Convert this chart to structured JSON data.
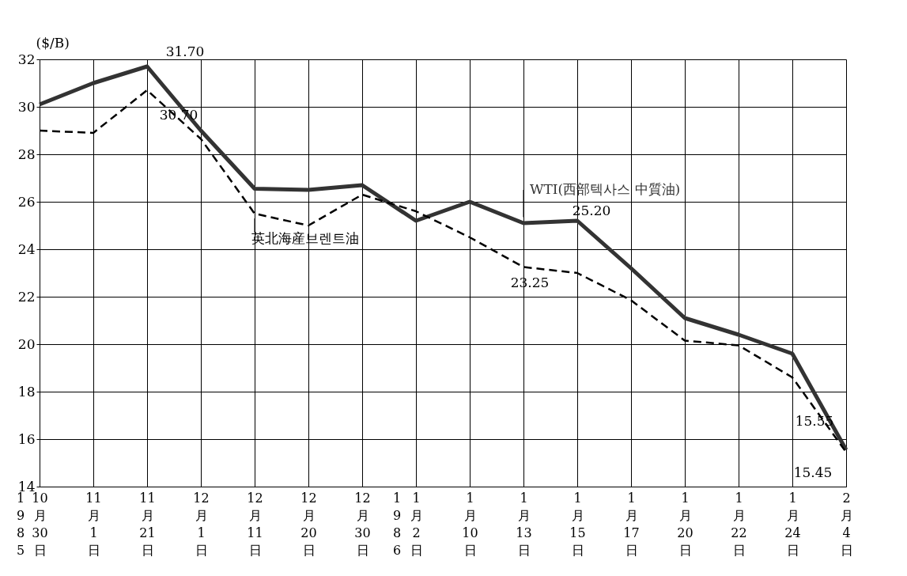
{
  "chart_data": {
    "type": "line",
    "ylabel": "($/B)",
    "categories": [
      "10月30日",
      "11月1日",
      "11月21日",
      "12月1日",
      "12月11日",
      "12月20日",
      "12月30日",
      "1月2日",
      "1月10日",
      "1月13日",
      "1月15日",
      "1月17日",
      "1月20日",
      "1月22日",
      "1月24日",
      "2月4日"
    ],
    "series": [
      {
        "name": "WTI(西部텍사스 中質油)",
        "color": "#333333",
        "line_style": "solid",
        "values": [
          30.1,
          31.0,
          31.7,
          29.0,
          26.55,
          26.5,
          26.7,
          25.2,
          26.0,
          25.1,
          25.2,
          23.2,
          21.1,
          20.4,
          19.6,
          15.55
        ]
      },
      {
        "name": "英北海産브렌트油",
        "color": "#000000",
        "line_style": "dashed",
        "values": [
          29.0,
          28.9,
          30.7,
          28.65,
          25.5,
          25.0,
          26.3,
          25.6,
          24.5,
          23.25,
          23.0,
          21.85,
          20.15,
          19.95,
          18.6,
          15.45
        ]
      }
    ],
    "ylim": [
      14,
      32
    ],
    "yticks": [
      14,
      16,
      18,
      20,
      22,
      24,
      26,
      28,
      30,
      32
    ],
    "grid": true,
    "marker": "none",
    "annotations": [
      {
        "text": "31.70",
        "x": "11月21日",
        "y": 31.7
      },
      {
        "text": "30.70",
        "x": "11月21日",
        "y": 30.7
      },
      {
        "text": "25.20",
        "x": "1月15日",
        "y": 25.2
      },
      {
        "text": "23.25",
        "x": "1月13日",
        "y": 23.25
      },
      {
        "text": "15.55",
        "x": "2月4日",
        "y": 15.55
      },
      {
        "text": "15.45",
        "x": "2月4日",
        "y": 15.45
      },
      "1985",
      "1986"
    ]
  }
}
